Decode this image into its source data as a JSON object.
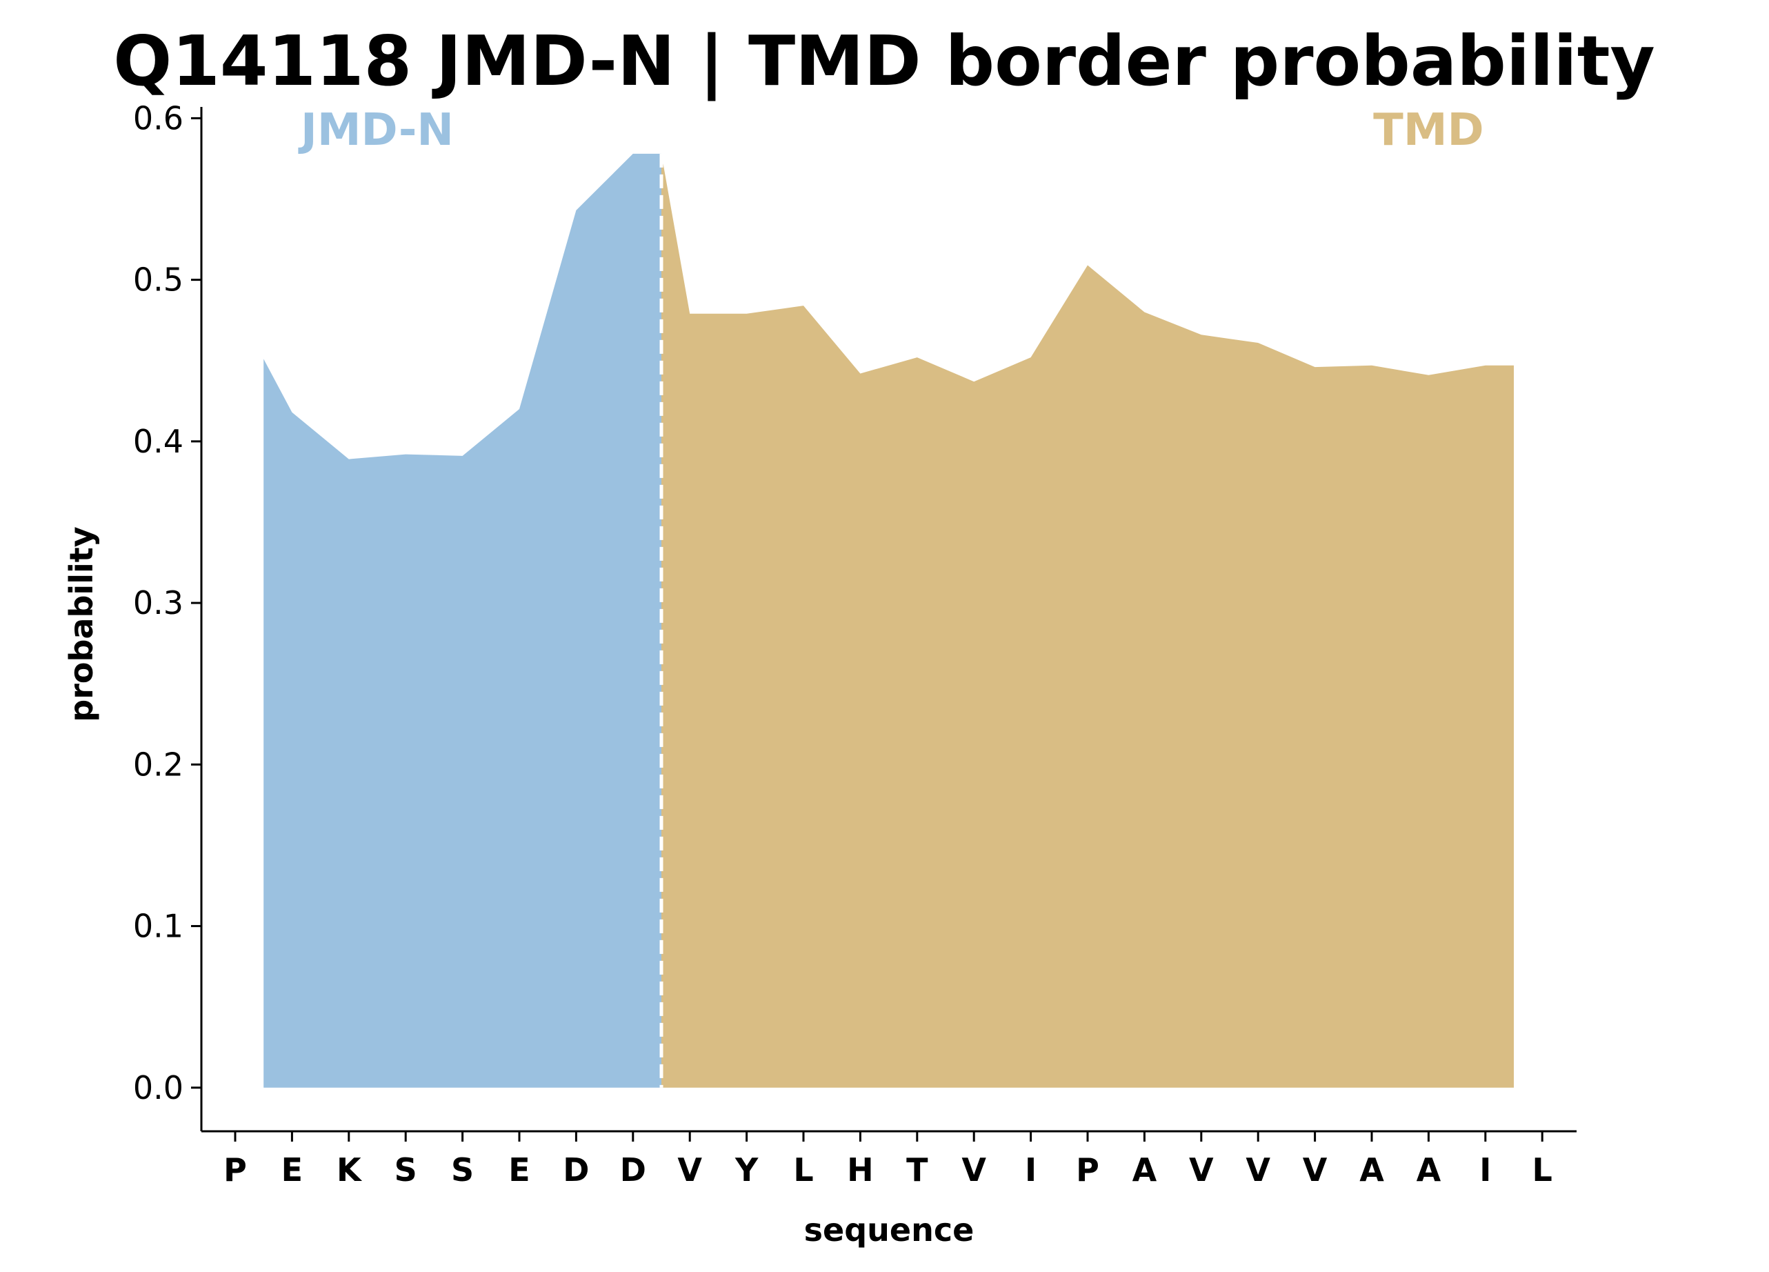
{
  "chart_data": {
    "type": "area",
    "title": "Q14118 JMD-N | TMD border probability",
    "xlabel": "sequence",
    "ylabel": "probability",
    "ylim": [
      -0.027,
      0.607
    ],
    "yticks": [
      "0.0",
      "0.1",
      "0.2",
      "0.3",
      "0.4",
      "0.5",
      "0.6"
    ],
    "yticks_values": [
      0.0,
      0.1,
      0.2,
      0.3,
      0.4,
      0.5,
      0.6
    ],
    "categories": [
      "P",
      "E",
      "K",
      "S",
      "S",
      "E",
      "D",
      "D",
      "V",
      "Y",
      "L",
      "H",
      "T",
      "V",
      "I",
      "P",
      "A",
      "V",
      "V",
      "V",
      "A",
      "A",
      "I",
      "L"
    ],
    "grid": false,
    "series": [
      {
        "name": "JMD-N",
        "color": "#9bc1e0",
        "x": [
          0.5,
          1,
          2,
          3,
          4,
          5,
          6,
          7,
          7.5
        ],
        "values": [
          0.451,
          0.418,
          0.389,
          0.392,
          0.391,
          0.42,
          0.543,
          0.578,
          0.578
        ]
      },
      {
        "name": "TMD",
        "color": "#d9bd84",
        "x": [
          7.5,
          8,
          9,
          10,
          11,
          12,
          13,
          14,
          15,
          16,
          17,
          18,
          19,
          20,
          21,
          22,
          22.5
        ],
        "values": [
          0.578,
          0.479,
          0.479,
          0.484,
          0.442,
          0.452,
          0.437,
          0.452,
          0.509,
          0.48,
          0.466,
          0.461,
          0.446,
          0.447,
          0.441,
          0.447,
          0.447
        ]
      }
    ],
    "border": {
      "x": 7.5,
      "style": "dashed",
      "color": "#ffffff"
    },
    "region_labels": [
      {
        "text": "JMD-N",
        "color": "#9bc1e0",
        "x": 2.5
      },
      {
        "text": "TMD",
        "color": "#d9bd84",
        "x": 21
      }
    ]
  }
}
